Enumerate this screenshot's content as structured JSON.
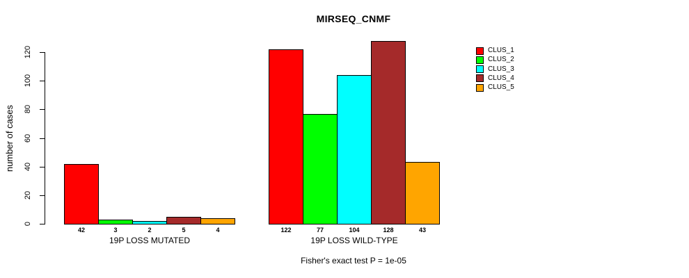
{
  "chart_data": {
    "type": "bar",
    "title": "MIRSEQ_CNMF",
    "ylabel": "number of cases",
    "ylim": [
      0,
      120
    ],
    "yticks": [
      0,
      20,
      40,
      60,
      80,
      100,
      120
    ],
    "grid": false,
    "legend_position": "right",
    "value_labels_shown": true,
    "categories": [
      "19P LOSS MUTATED",
      "19P LOSS WILD-TYPE"
    ],
    "series": [
      {
        "name": "CLUS_1",
        "color": "#ff0000",
        "values": [
          42,
          122
        ]
      },
      {
        "name": "CLUS_2",
        "color": "#00ff00",
        "values": [
          3,
          77
        ]
      },
      {
        "name": "CLUS_3",
        "color": "#00ffff",
        "values": [
          2,
          104
        ]
      },
      {
        "name": "CLUS_4",
        "color": "#a52a2a",
        "values": [
          5,
          128
        ]
      },
      {
        "name": "CLUS_5",
        "color": "#ffa500",
        "values": [
          4,
          43
        ]
      }
    ],
    "annotation": "Fisher's exact test P = 1e-05"
  }
}
